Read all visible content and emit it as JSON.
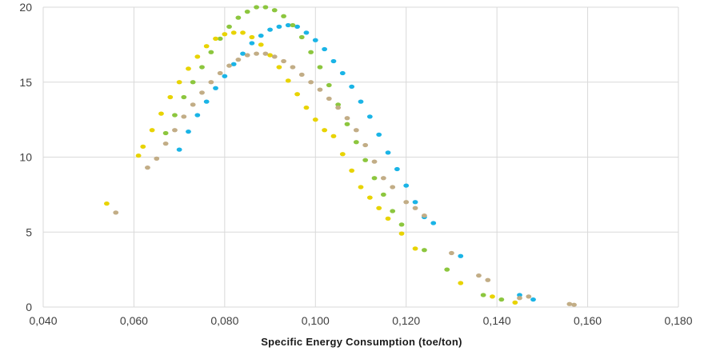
{
  "chart_data": {
    "type": "scatter",
    "title": "",
    "xlabel": "Specific Energy Consumption (toe/ton)",
    "ylabel": "",
    "xlim": [
      0.04,
      0.18
    ],
    "ylim": [
      0,
      20
    ],
    "x_ticks": [
      "0,040",
      "0,060",
      "0,080",
      "0,100",
      "0,120",
      "0,140",
      "0,160",
      "0,180"
    ],
    "y_ticks": [
      "0",
      "5",
      "10",
      "15",
      "20"
    ],
    "grid": true,
    "legend": "none",
    "series": [
      {
        "color": "#1ab4e6",
        "points": [
          [
            0.07,
            10.5
          ],
          [
            0.072,
            11.7
          ],
          [
            0.074,
            12.8
          ],
          [
            0.076,
            13.7
          ],
          [
            0.078,
            14.6
          ],
          [
            0.08,
            15.4
          ],
          [
            0.082,
            16.2
          ],
          [
            0.084,
            16.9
          ],
          [
            0.086,
            17.6
          ],
          [
            0.088,
            18.1
          ],
          [
            0.09,
            18.5
          ],
          [
            0.092,
            18.7
          ],
          [
            0.094,
            18.8
          ],
          [
            0.096,
            18.7
          ],
          [
            0.098,
            18.3
          ],
          [
            0.1,
            17.8
          ],
          [
            0.102,
            17.2
          ],
          [
            0.104,
            16.4
          ],
          [
            0.106,
            15.6
          ],
          [
            0.108,
            14.7
          ],
          [
            0.11,
            13.7
          ],
          [
            0.112,
            12.7
          ],
          [
            0.114,
            11.5
          ],
          [
            0.116,
            10.3
          ],
          [
            0.118,
            9.2
          ],
          [
            0.12,
            8.1
          ],
          [
            0.122,
            7.0
          ],
          [
            0.124,
            6.0
          ],
          [
            0.126,
            5.6
          ],
          [
            0.132,
            3.4
          ],
          [
            0.145,
            0.8
          ],
          [
            0.148,
            0.5
          ]
        ]
      },
      {
        "color": "#8cc63e",
        "points": [
          [
            0.067,
            11.6
          ],
          [
            0.069,
            12.8
          ],
          [
            0.071,
            14.0
          ],
          [
            0.073,
            15.0
          ],
          [
            0.075,
            16.0
          ],
          [
            0.077,
            17.0
          ],
          [
            0.079,
            17.9
          ],
          [
            0.081,
            18.7
          ],
          [
            0.083,
            19.3
          ],
          [
            0.085,
            19.7
          ],
          [
            0.087,
            20.0
          ],
          [
            0.089,
            20.0
          ],
          [
            0.091,
            19.8
          ],
          [
            0.093,
            19.4
          ],
          [
            0.095,
            18.8
          ],
          [
            0.097,
            18.0
          ],
          [
            0.099,
            17.0
          ],
          [
            0.101,
            16.0
          ],
          [
            0.103,
            14.8
          ],
          [
            0.105,
            13.5
          ],
          [
            0.107,
            12.2
          ],
          [
            0.109,
            11.0
          ],
          [
            0.111,
            9.8
          ],
          [
            0.113,
            8.6
          ],
          [
            0.115,
            7.5
          ],
          [
            0.117,
            6.4
          ],
          [
            0.119,
            5.5
          ],
          [
            0.124,
            3.8
          ],
          [
            0.129,
            2.5
          ],
          [
            0.137,
            0.8
          ],
          [
            0.141,
            0.5
          ]
        ]
      },
      {
        "color": "#e8d300",
        "points": [
          [
            0.054,
            6.9
          ],
          [
            0.061,
            10.1
          ],
          [
            0.062,
            10.7
          ],
          [
            0.064,
            11.8
          ],
          [
            0.066,
            12.9
          ],
          [
            0.068,
            14.0
          ],
          [
            0.07,
            15.0
          ],
          [
            0.072,
            15.9
          ],
          [
            0.074,
            16.7
          ],
          [
            0.076,
            17.4
          ],
          [
            0.078,
            17.9
          ],
          [
            0.08,
            18.2
          ],
          [
            0.082,
            18.3
          ],
          [
            0.084,
            18.3
          ],
          [
            0.086,
            18.0
          ],
          [
            0.088,
            17.5
          ],
          [
            0.09,
            16.8
          ],
          [
            0.092,
            16.0
          ],
          [
            0.094,
            15.1
          ],
          [
            0.096,
            14.2
          ],
          [
            0.098,
            13.3
          ],
          [
            0.1,
            12.5
          ],
          [
            0.102,
            11.8
          ],
          [
            0.104,
            11.4
          ],
          [
            0.106,
            10.2
          ],
          [
            0.108,
            9.1
          ],
          [
            0.11,
            8.0
          ],
          [
            0.112,
            7.3
          ],
          [
            0.114,
            6.6
          ],
          [
            0.116,
            5.9
          ],
          [
            0.119,
            4.9
          ],
          [
            0.122,
            3.9
          ],
          [
            0.132,
            1.6
          ],
          [
            0.139,
            0.7
          ],
          [
            0.144,
            0.3
          ]
        ]
      },
      {
        "color": "#c2ad86",
        "points": [
          [
            0.056,
            6.3
          ],
          [
            0.063,
            9.3
          ],
          [
            0.065,
            9.9
          ],
          [
            0.067,
            10.9
          ],
          [
            0.069,
            11.8
          ],
          [
            0.071,
            12.7
          ],
          [
            0.073,
            13.5
          ],
          [
            0.075,
            14.3
          ],
          [
            0.077,
            15.0
          ],
          [
            0.079,
            15.6
          ],
          [
            0.081,
            16.1
          ],
          [
            0.083,
            16.5
          ],
          [
            0.085,
            16.8
          ],
          [
            0.087,
            16.9
          ],
          [
            0.089,
            16.9
          ],
          [
            0.091,
            16.7
          ],
          [
            0.093,
            16.4
          ],
          [
            0.095,
            16.0
          ],
          [
            0.097,
            15.5
          ],
          [
            0.099,
            15.0
          ],
          [
            0.101,
            14.5
          ],
          [
            0.103,
            13.9
          ],
          [
            0.105,
            13.3
          ],
          [
            0.107,
            12.6
          ],
          [
            0.109,
            11.8
          ],
          [
            0.111,
            10.8
          ],
          [
            0.113,
            9.7
          ],
          [
            0.115,
            8.6
          ],
          [
            0.117,
            8.0
          ],
          [
            0.12,
            7.0
          ],
          [
            0.122,
            6.6
          ],
          [
            0.124,
            6.1
          ],
          [
            0.13,
            3.6
          ],
          [
            0.136,
            2.1
          ],
          [
            0.138,
            1.8
          ],
          [
            0.145,
            0.6
          ],
          [
            0.147,
            0.7
          ],
          [
            0.156,
            0.2
          ],
          [
            0.157,
            0.15
          ]
        ]
      }
    ]
  }
}
